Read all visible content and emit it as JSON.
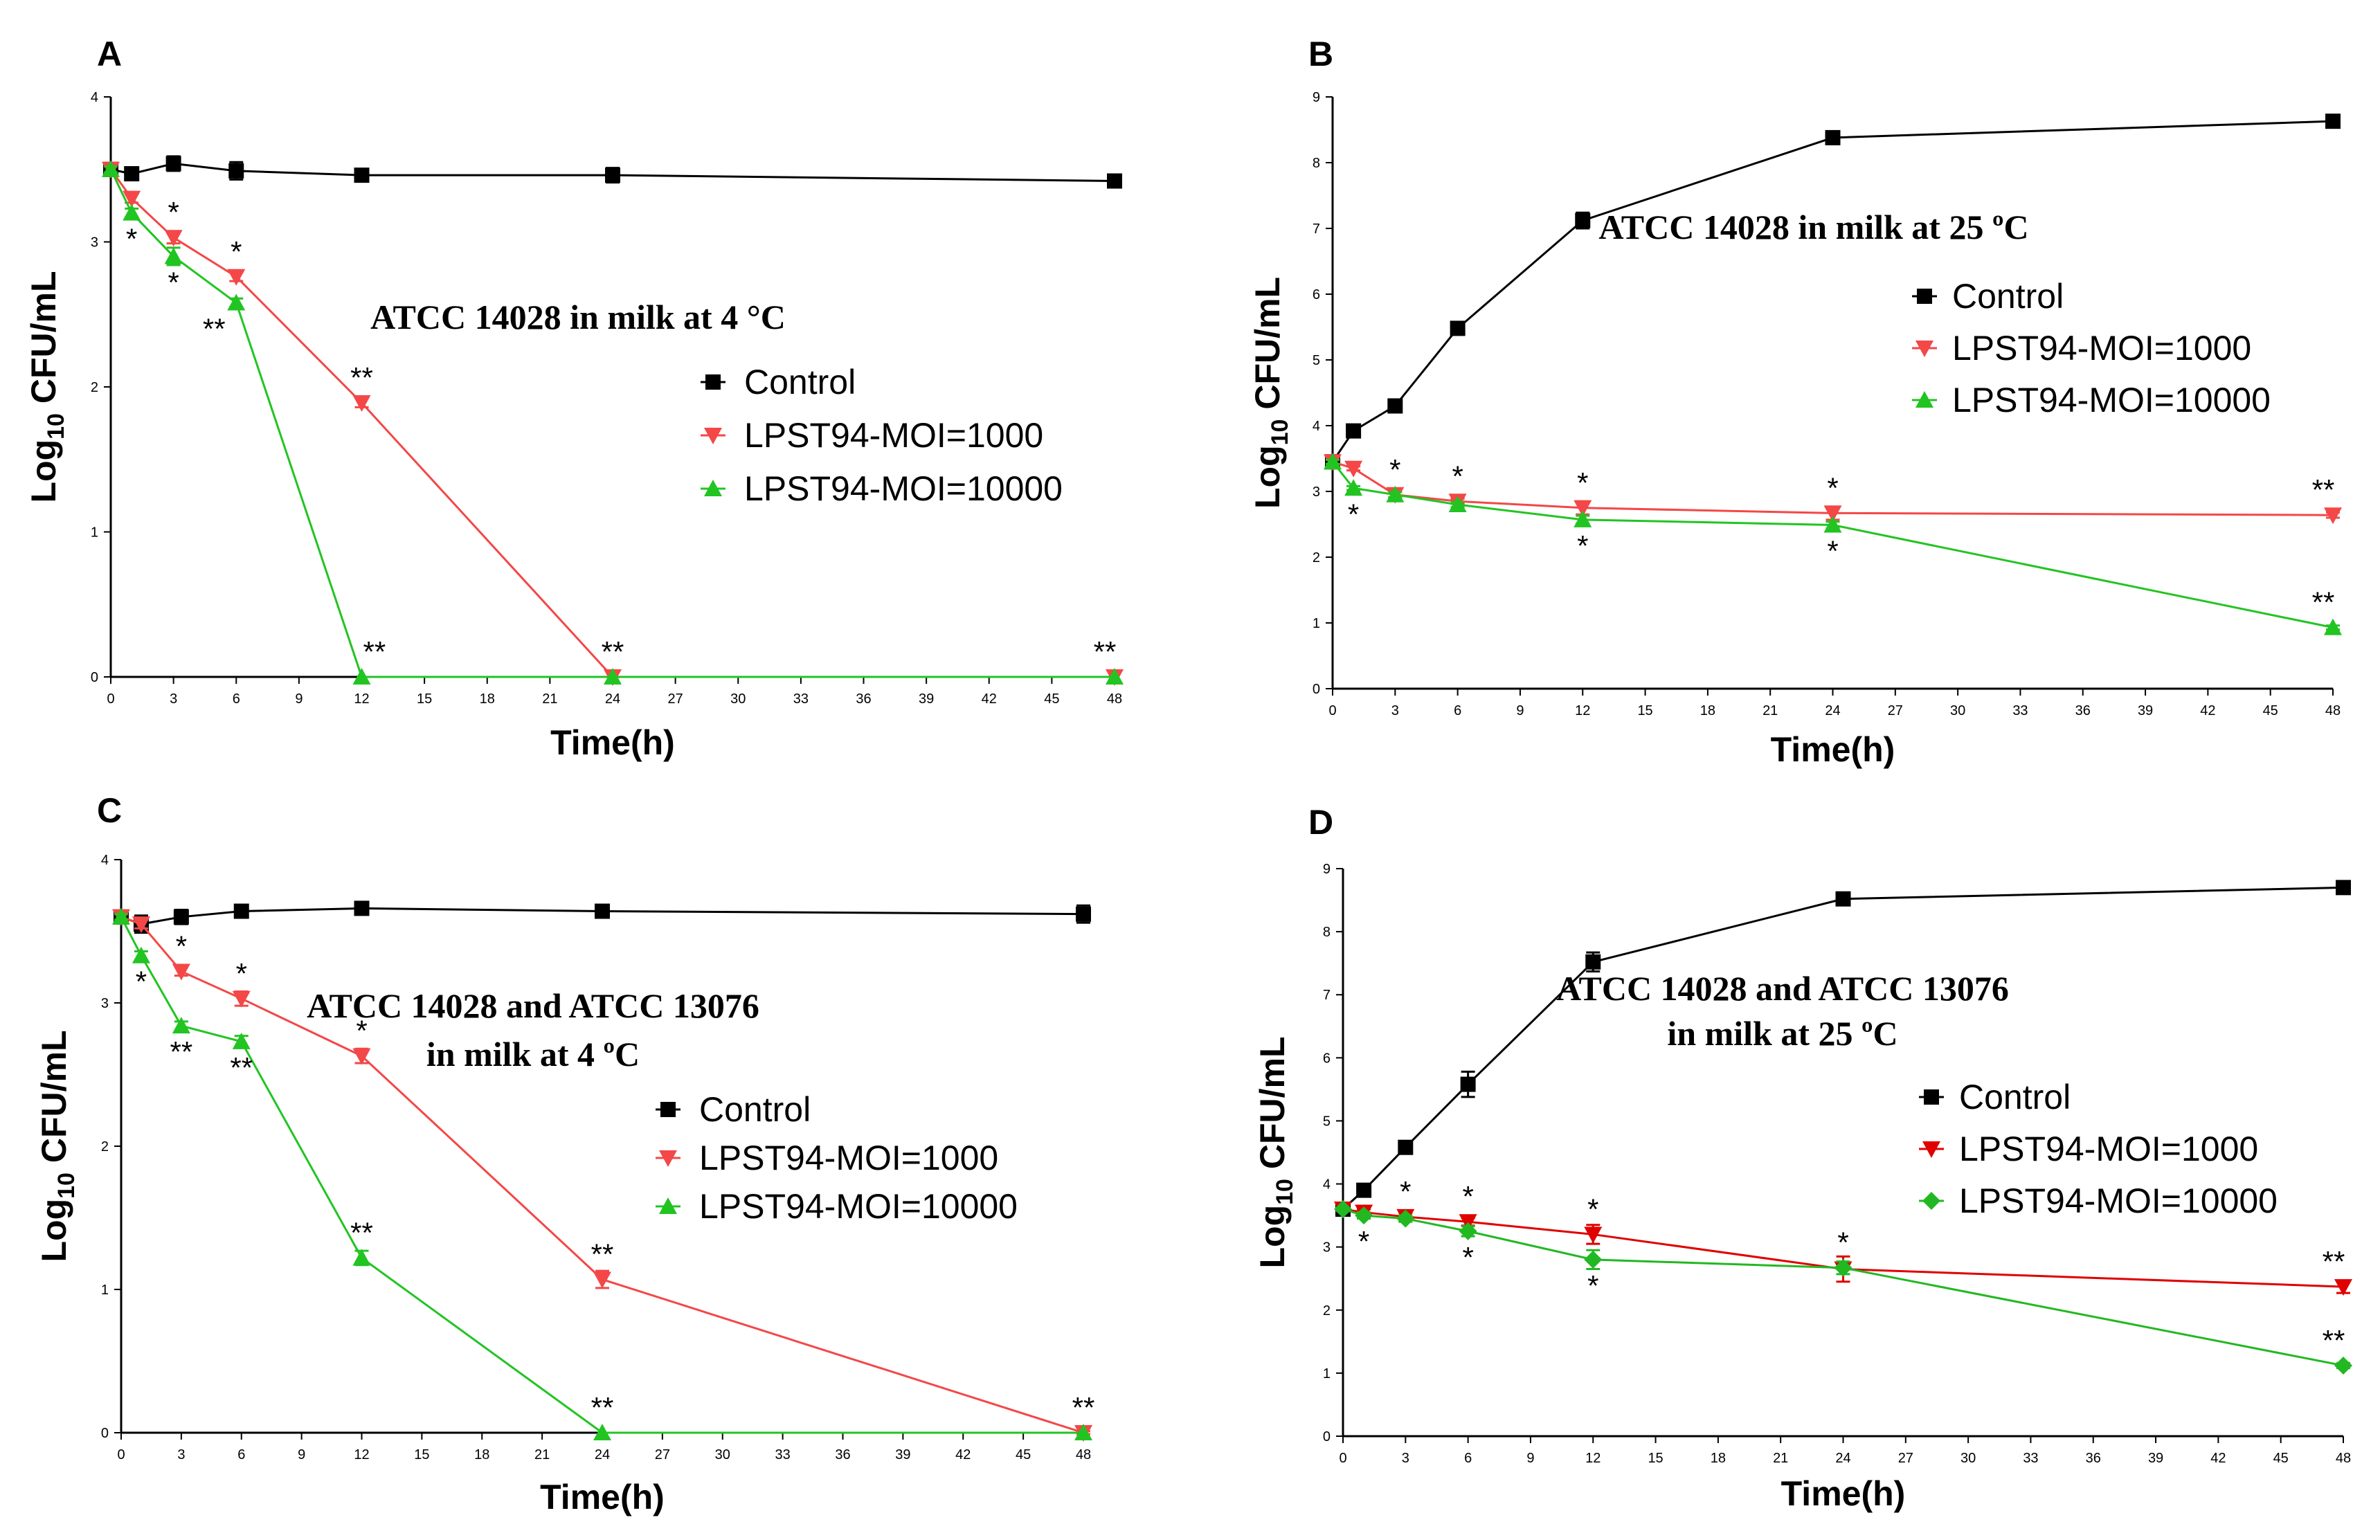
{
  "chart_data": [
    {
      "panel": "A",
      "type": "line",
      "title": [
        "ATCC 14028 in milk at 4 °C"
      ],
      "xlabel": "Time(h)",
      "ylabel": "Log10 CFU/mL",
      "xlim": [
        0,
        48
      ],
      "ylim": [
        0,
        4
      ],
      "xticks": [
        0,
        3,
        6,
        9,
        12,
        15,
        18,
        21,
        24,
        27,
        30,
        33,
        36,
        39,
        42,
        45,
        48
      ],
      "yticks": [
        0,
        1,
        2,
        3,
        4
      ],
      "series": [
        {
          "name": "Control",
          "color": "#000000",
          "marker": "square",
          "x": [
            0,
            1,
            3,
            6,
            12,
            24,
            48
          ],
          "y": [
            3.5,
            3.47,
            3.54,
            3.49,
            3.46,
            3.46,
            3.42
          ],
          "err": [
            0.02,
            0.03,
            0.05,
            0.06,
            0.02,
            0.05,
            0.02
          ]
        },
        {
          "name": "LPST94-MOI=1000",
          "color": "#f44747",
          "marker": "triangle-down",
          "x": [
            0,
            1,
            3,
            6,
            12,
            24,
            48
          ],
          "y": [
            3.5,
            3.3,
            3.03,
            2.76,
            1.89,
            0,
            0
          ],
          "err": [
            0.02,
            0.03,
            0.04,
            0.03,
            0.03,
            0,
            0
          ]
        },
        {
          "name": "LPST94-MOI=10000",
          "color": "#22c422",
          "marker": "triangle-up",
          "x": [
            0,
            1,
            3,
            6,
            12,
            24,
            48
          ],
          "y": [
            3.5,
            3.2,
            2.9,
            2.58,
            0,
            0,
            0
          ],
          "err": [
            0.02,
            0.03,
            0.06,
            0.03,
            0,
            0,
            0
          ]
        }
      ],
      "annotations": [
        {
          "text": "*",
          "x": 1,
          "y": 3.2,
          "pos": "below"
        },
        {
          "text": "*",
          "x": 3,
          "y": 3.03,
          "pos": "above"
        },
        {
          "text": "*",
          "x": 3,
          "y": 2.9,
          "pos": "below"
        },
        {
          "text": "*",
          "x": 6,
          "y": 2.76,
          "pos": "above"
        },
        {
          "text": "**",
          "x": 6,
          "y": 2.58,
          "pos": "below-left"
        },
        {
          "text": "**",
          "x": 12,
          "y": 1.89,
          "pos": "above"
        },
        {
          "text": "**",
          "x": 12,
          "y": 0,
          "pos": "above-right"
        },
        {
          "text": "**",
          "x": 24,
          "y": 0,
          "pos": "above"
        },
        {
          "text": "**",
          "x": 48,
          "y": 0,
          "pos": "above-left"
        }
      ]
    },
    {
      "panel": "B",
      "type": "line",
      "title": [
        "ATCC 14028 in milk at 25 ºC"
      ],
      "xlabel": "Time(h)",
      "ylabel": "Log10 CFU/mL",
      "xlim": [
        0,
        48
      ],
      "ylim": [
        0,
        9
      ],
      "xticks": [
        0,
        3,
        6,
        9,
        12,
        15,
        18,
        21,
        24,
        27,
        30,
        33,
        36,
        39,
        42,
        45,
        48
      ],
      "yticks": [
        0,
        1,
        2,
        3,
        4,
        5,
        6,
        7,
        8,
        9
      ],
      "series": [
        {
          "name": "Control",
          "color": "#000000",
          "marker": "square",
          "x": [
            0,
            1,
            3,
            6,
            12,
            24,
            48
          ],
          "y": [
            3.45,
            3.92,
            4.3,
            5.48,
            7.12,
            8.38,
            8.63
          ],
          "err": [
            0.03,
            0.03,
            0.04,
            0.05,
            0.12,
            0.05,
            0.04
          ]
        },
        {
          "name": "LPST94-MOI=1000",
          "color": "#f44747",
          "marker": "triangle-down",
          "x": [
            0,
            1,
            3,
            6,
            12,
            24,
            48
          ],
          "y": [
            3.45,
            3.35,
            2.95,
            2.85,
            2.75,
            2.67,
            2.64
          ],
          "err": [
            0.03,
            0.03,
            0.04,
            0.04,
            0.1,
            0.1,
            0.04
          ]
        },
        {
          "name": "LPST94-MOI=10000",
          "color": "#22c422",
          "marker": "triangle-up",
          "x": [
            0,
            1,
            3,
            6,
            12,
            24,
            48
          ],
          "y": [
            3.45,
            3.05,
            2.95,
            2.8,
            2.57,
            2.49,
            0.93
          ],
          "err": [
            0.03,
            0.03,
            0.04,
            0.04,
            0.06,
            0.05,
            0.03
          ]
        }
      ],
      "annotations": [
        {
          "text": "*",
          "x": 1,
          "y": 3.05,
          "pos": "below"
        },
        {
          "text": "*",
          "x": 3,
          "y": 2.95,
          "pos": "above"
        },
        {
          "text": "*",
          "x": 6,
          "y": 2.85,
          "pos": "above"
        },
        {
          "text": "*",
          "x": 12,
          "y": 2.75,
          "pos": "above"
        },
        {
          "text": "*",
          "x": 12,
          "y": 2.57,
          "pos": "below"
        },
        {
          "text": "*",
          "x": 24,
          "y": 2.67,
          "pos": "above"
        },
        {
          "text": "*",
          "x": 24,
          "y": 2.49,
          "pos": "below"
        },
        {
          "text": "**",
          "x": 48,
          "y": 2.64,
          "pos": "above-left"
        },
        {
          "text": "**",
          "x": 48,
          "y": 0.93,
          "pos": "above-left"
        }
      ]
    },
    {
      "panel": "C",
      "type": "line",
      "title": [
        "ATCC 14028 and ATCC 13076",
        "in milk at 4 ºC"
      ],
      "xlabel": "Time(h)",
      "ylabel": "Log10 CFU/mL",
      "xlim": [
        0,
        48
      ],
      "ylim": [
        0,
        4
      ],
      "xticks": [
        0,
        3,
        6,
        9,
        12,
        15,
        18,
        21,
        24,
        27,
        30,
        33,
        36,
        39,
        42,
        45,
        48
      ],
      "yticks": [
        0,
        1,
        2,
        3,
        4
      ],
      "series": [
        {
          "name": "Control",
          "color": "#000000",
          "marker": "square",
          "x": [
            0,
            1,
            3,
            6,
            12,
            24,
            48
          ],
          "y": [
            3.6,
            3.55,
            3.6,
            3.64,
            3.66,
            3.64,
            3.62
          ],
          "err": [
            0.02,
            0.06,
            0.05,
            0.04,
            0.04,
            0.02,
            0.06
          ]
        },
        {
          "name": "LPST94-MOI=1000",
          "color": "#f44747",
          "marker": "triangle-down",
          "x": [
            0,
            1,
            3,
            6,
            12,
            24,
            48
          ],
          "y": [
            3.6,
            3.55,
            3.22,
            3.03,
            2.63,
            1.07,
            0
          ],
          "err": [
            0.02,
            0.03,
            0.03,
            0.05,
            0.05,
            0.06,
            0.01
          ]
        },
        {
          "name": "LPST94-MOI=10000",
          "color": "#22c422",
          "marker": "triangle-up",
          "x": [
            0,
            1,
            3,
            6,
            12,
            24,
            48
          ],
          "y": [
            3.6,
            3.33,
            2.84,
            2.73,
            1.22,
            0,
            0
          ],
          "err": [
            0.02,
            0.03,
            0.03,
            0.04,
            0.05,
            0,
            0
          ]
        }
      ],
      "annotations": [
        {
          "text": "*",
          "x": 1,
          "y": 3.33,
          "pos": "below"
        },
        {
          "text": "*",
          "x": 3,
          "y": 3.22,
          "pos": "above"
        },
        {
          "text": "**",
          "x": 3,
          "y": 2.84,
          "pos": "below"
        },
        {
          "text": "*",
          "x": 6,
          "y": 3.03,
          "pos": "above"
        },
        {
          "text": "**",
          "x": 6,
          "y": 2.73,
          "pos": "below"
        },
        {
          "text": "*",
          "x": 12,
          "y": 2.63,
          "pos": "above"
        },
        {
          "text": "**",
          "x": 12,
          "y": 1.22,
          "pos": "above"
        },
        {
          "text": "**",
          "x": 24,
          "y": 1.07,
          "pos": "above"
        },
        {
          "text": "**",
          "x": 24,
          "y": 0,
          "pos": "above"
        },
        {
          "text": "**",
          "x": 48,
          "y": 0,
          "pos": "above"
        }
      ]
    },
    {
      "panel": "D",
      "type": "line",
      "title": [
        "ATCC 14028 and ATCC 13076",
        " in milk at 25 ºC"
      ],
      "xlabel": "Time(h)",
      "ylabel": "Log10 CFU/mL",
      "xlim": [
        0,
        48
      ],
      "ylim": [
        0,
        9
      ],
      "xticks": [
        0,
        3,
        6,
        9,
        12,
        15,
        18,
        21,
        24,
        27,
        30,
        33,
        36,
        39,
        42,
        45,
        48
      ],
      "yticks": [
        0,
        1,
        2,
        3,
        4,
        5,
        6,
        7,
        8,
        9
      ],
      "series": [
        {
          "name": "Control",
          "color": "#000000",
          "marker": "square",
          "x": [
            0,
            1,
            3,
            6,
            12,
            24,
            48
          ],
          "y": [
            3.6,
            3.9,
            4.58,
            5.58,
            7.52,
            8.52,
            8.7
          ],
          "err": [
            0.03,
            0.04,
            0.1,
            0.2,
            0.15,
            0.08,
            0.1
          ]
        },
        {
          "name": "LPST94-MOI=1000",
          "color": "#e00000",
          "marker": "triangle-down",
          "x": [
            0,
            1,
            3,
            6,
            12,
            24,
            48
          ],
          "y": [
            3.6,
            3.55,
            3.48,
            3.4,
            3.2,
            2.65,
            2.37
          ],
          "err": [
            0.03,
            0.05,
            0.06,
            0.06,
            0.15,
            0.2,
            0.1
          ]
        },
        {
          "name": "LPST94-MOI=10000",
          "color": "#22b822",
          "marker": "diamond",
          "x": [
            0,
            1,
            3,
            6,
            12,
            24,
            48
          ],
          "y": [
            3.6,
            3.5,
            3.45,
            3.25,
            2.8,
            2.67,
            1.12
          ],
          "err": [
            0.03,
            0.05,
            0.05,
            0.08,
            0.15,
            0.1,
            0.04
          ]
        }
      ],
      "annotations": [
        {
          "text": "*",
          "x": 1,
          "y": 3.5,
          "pos": "below"
        },
        {
          "text": "*",
          "x": 3,
          "y": 3.48,
          "pos": "above"
        },
        {
          "text": "*",
          "x": 6,
          "y": 3.4,
          "pos": "above"
        },
        {
          "text": "*",
          "x": 6,
          "y": 3.25,
          "pos": "below"
        },
        {
          "text": "*",
          "x": 12,
          "y": 3.2,
          "pos": "above"
        },
        {
          "text": "*",
          "x": 12,
          "y": 2.8,
          "pos": "below"
        },
        {
          "text": "*",
          "x": 24,
          "y": 2.67,
          "pos": "above"
        },
        {
          "text": "**",
          "x": 48,
          "y": 2.37,
          "pos": "above-left"
        },
        {
          "text": "**",
          "x": 48,
          "y": 1.12,
          "pos": "above-left"
        }
      ]
    }
  ]
}
